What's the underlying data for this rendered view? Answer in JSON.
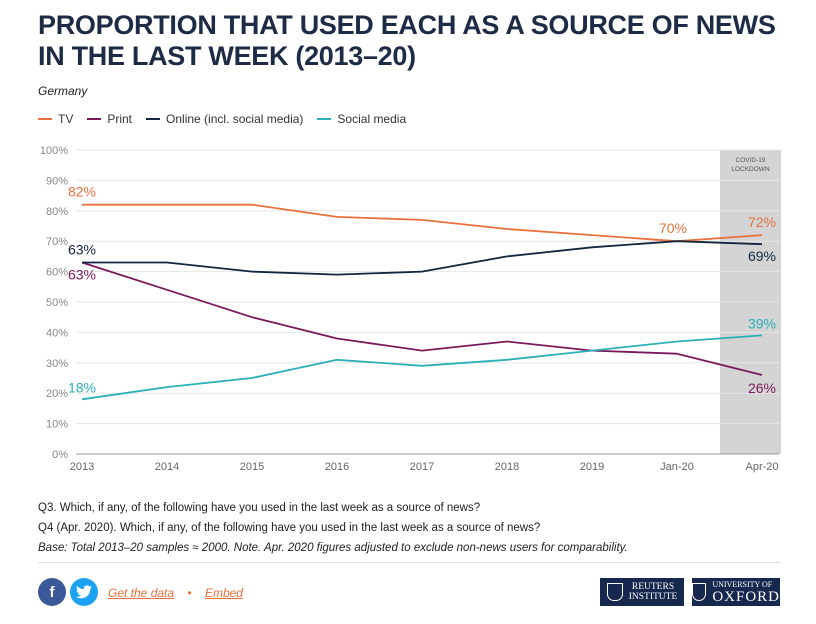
{
  "header": {
    "title": "PROPORTION THAT USED EACH AS A SOURCE OF NEWS IN THE LAST WEEK (2013–20)",
    "subtitle": "Germany"
  },
  "legend": [
    {
      "label": "TV",
      "color": "#e8713c"
    },
    {
      "label": "Print",
      "color": "#7a1a5c"
    },
    {
      "label": "Online (incl. social media)",
      "color": "#13253f"
    },
    {
      "label": "Social media",
      "color": "#2ab0b8"
    }
  ],
  "chart_data": {
    "type": "line",
    "categories": [
      "2013",
      "2014",
      "2015",
      "2016",
      "2017",
      "2018",
      "2019",
      "Jan-20",
      "Apr-20"
    ],
    "series": [
      {
        "name": "TV",
        "color": "#e8713c",
        "values": [
          82,
          82,
          82,
          78,
          77,
          74,
          72,
          70,
          72
        ]
      },
      {
        "name": "Print",
        "color": "#7a1a5c",
        "values": [
          63,
          54,
          45,
          38,
          34,
          37,
          34,
          33,
          26
        ]
      },
      {
        "name": "Online (incl. social media)",
        "color": "#13253f",
        "values": [
          63,
          63,
          60,
          59,
          60,
          65,
          68,
          70,
          69
        ]
      },
      {
        "name": "Social media",
        "color": "#2ab0b8",
        "values": [
          18,
          22,
          25,
          31,
          29,
          31,
          34,
          37,
          39
        ]
      }
    ],
    "ylim": [
      0,
      100
    ],
    "yticks": [
      "0%",
      "10%",
      "20%",
      "30%",
      "40%",
      "50%",
      "60%",
      "70%",
      "80%",
      "90%",
      "100%"
    ],
    "grid": true,
    "legend_position": "top-left",
    "data_labels": [
      {
        "series": 0,
        "index": 0,
        "text": "82%"
      },
      {
        "series": 0,
        "index": 7,
        "text": "70%"
      },
      {
        "series": 0,
        "index": 8,
        "text": "72%"
      },
      {
        "series": 2,
        "index": 0,
        "text": "63%"
      },
      {
        "series": 2,
        "index": 8,
        "text": "69%"
      },
      {
        "series": 1,
        "index": 0,
        "text": "63%"
      },
      {
        "series": 1,
        "index": 8,
        "text": "26%"
      },
      {
        "series": 3,
        "index": 0,
        "text": "18%"
      },
      {
        "series": 3,
        "index": 8,
        "text": "39%"
      }
    ],
    "shaded_region": {
      "from_category": "Apr-20",
      "label_lines": [
        "COVID-19",
        "LOCKDOWN"
      ],
      "color": "#d4d4d4"
    }
  },
  "notes": {
    "q3": "Q3. Which, if any, of the following have you used in the last week as a source of news?",
    "q4": "Q4 (Apr. 2020). Which, if any, of the following have you used in the last week as a source of news?",
    "base": "Base: Total 2013–20 samples ≈ 2000. Note. Apr. 2020 figures adjusted to exclude non-news users for comparability."
  },
  "footer": {
    "facebook_icon": "f",
    "twitter_icon": "🐦",
    "get_data": "Get the data",
    "separator": "•",
    "embed": "Embed",
    "reuters_line1": "REUTERS",
    "reuters_line2": "INSTITUTE",
    "oxford_line1": "UNIVERSITY OF",
    "oxford_line2": "OXFORD"
  }
}
